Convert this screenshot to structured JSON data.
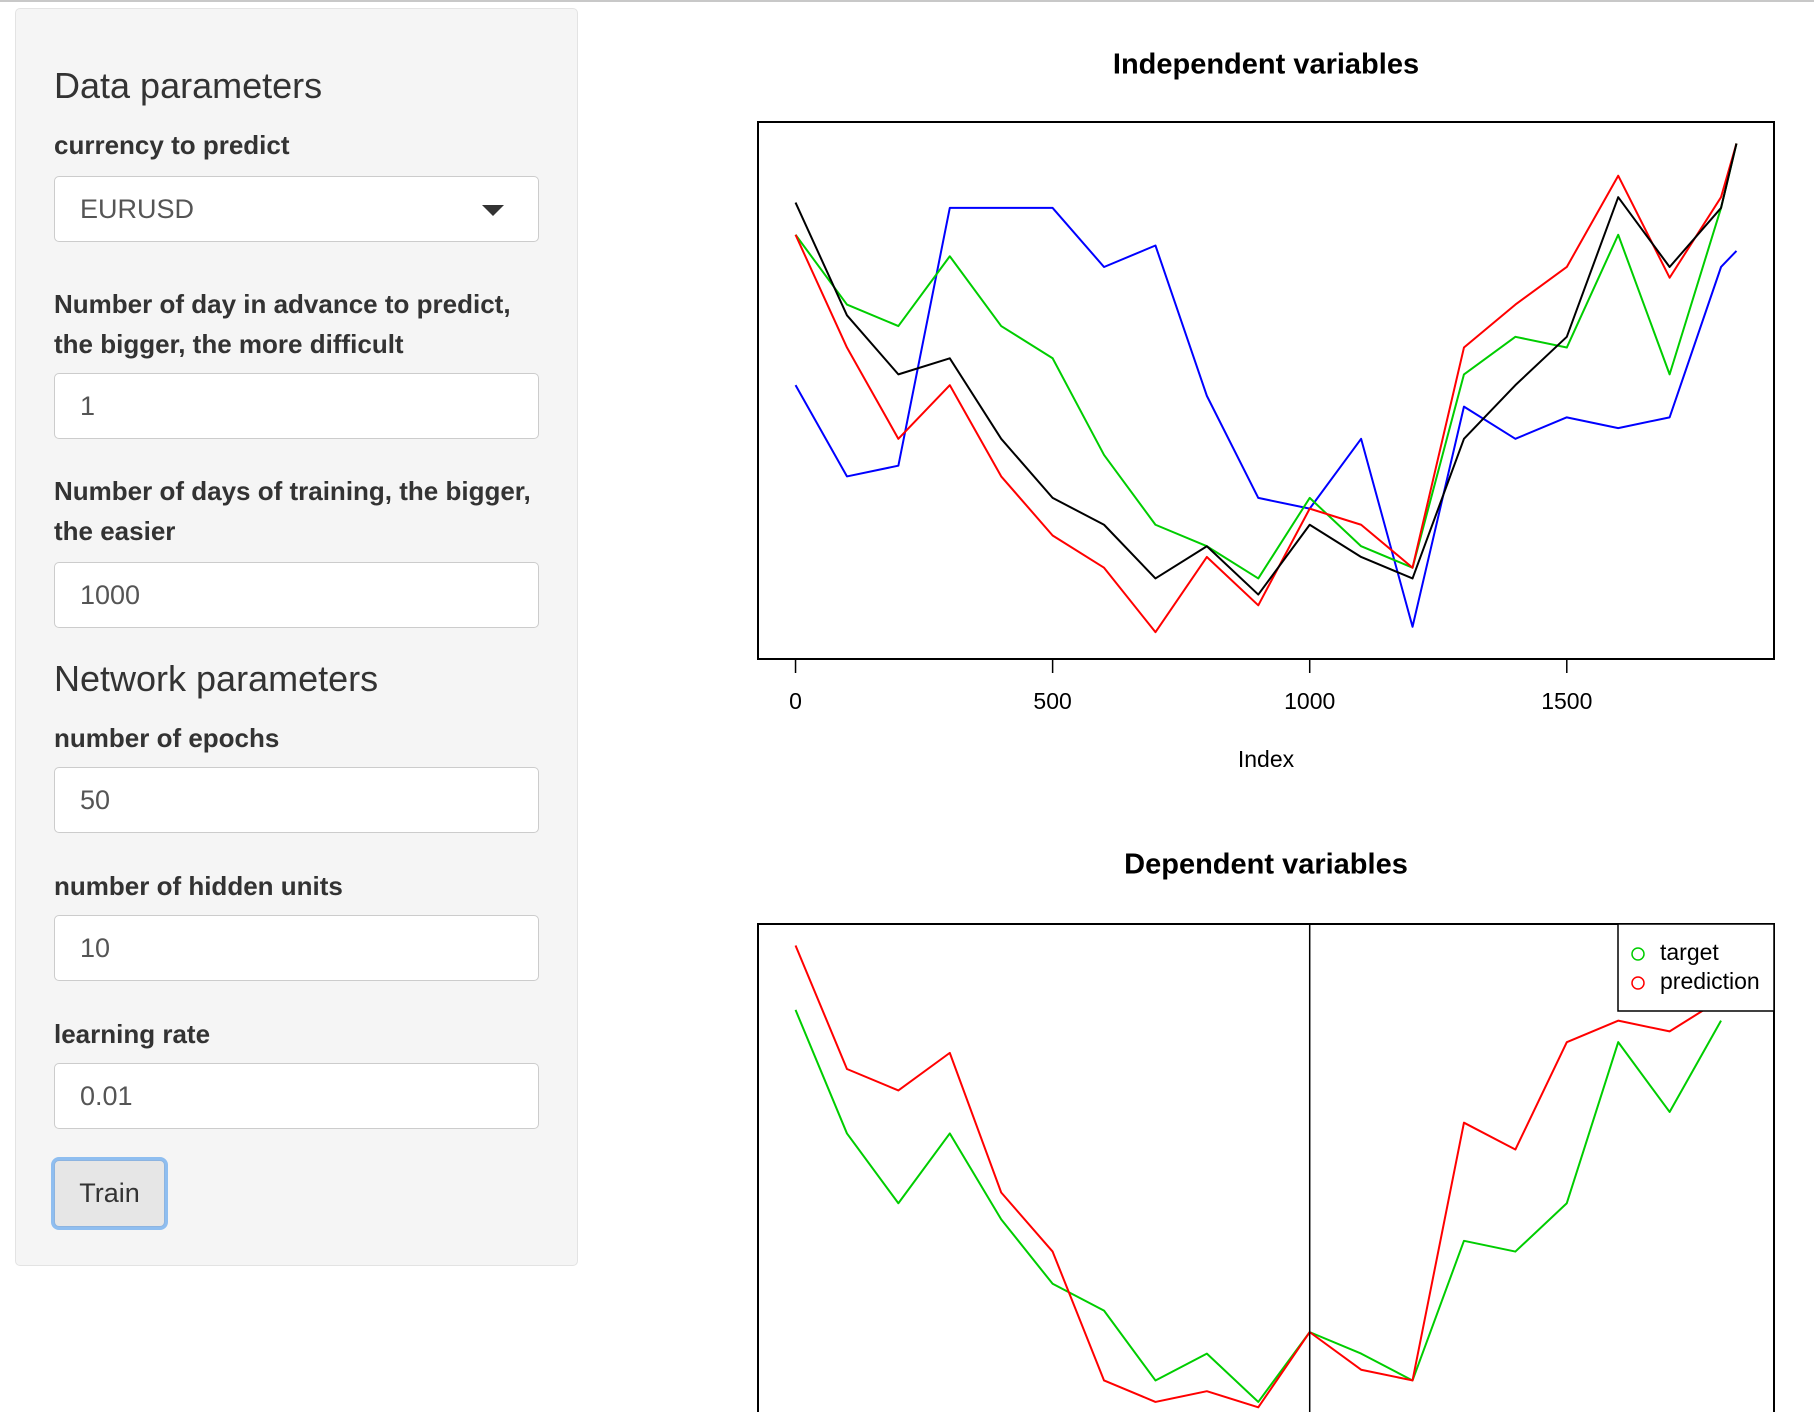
{
  "sidebar": {
    "data_parameters": {
      "title": "Data parameters",
      "fields": [
        {
          "label": "currency to predict",
          "value": "EURUSD"
        },
        {
          "label": "Number of day in advance to predict, the bigger, the more difficult",
          "value": "1"
        },
        {
          "label": "Number of days of training, the bigger, the easier",
          "value": "1000"
        }
      ]
    },
    "network_parameters": {
      "title": "Network parameters",
      "fields": [
        {
          "label": "number of epochs",
          "value": "50"
        },
        {
          "label": "number of hidden units",
          "value": "10"
        },
        {
          "label": "learning rate",
          "value": "0.01"
        }
      ]
    },
    "button": "Train"
  },
  "chart_data": [
    {
      "type": "line",
      "title": "Independent variables",
      "xlabel": "Index",
      "x": [
        0,
        100,
        200,
        300,
        400,
        500,
        600,
        700,
        800,
        900,
        1000,
        1100,
        1200,
        1300,
        1400,
        1500,
        1600,
        1700,
        1800,
        1830
      ],
      "xlim": [
        -73,
        1903
      ],
      "xticks": [
        0,
        500,
        1000,
        1500
      ],
      "ylim": [
        0,
        100
      ],
      "series": [
        {
          "color": "#0000ff",
          "values": [
            51,
            34,
            36,
            84,
            84,
            84,
            73,
            77,
            49,
            30,
            28,
            41,
            6,
            47,
            41,
            45,
            43,
            45,
            73,
            76
          ]
        },
        {
          "color": "#00cd00",
          "values": [
            79,
            66,
            62,
            75,
            62,
            56,
            38,
            25,
            21,
            15,
            30,
            21,
            17,
            53,
            60,
            58,
            79,
            53,
            84,
            96
          ]
        },
        {
          "color": "#ff0000",
          "values": [
            79,
            58,
            41,
            51,
            34,
            23,
            17,
            5,
            19,
            10,
            28,
            25,
            17,
            58,
            66,
            73,
            90,
            71,
            86,
            96
          ]
        },
        {
          "color": "#000000",
          "values": [
            85,
            64,
            53,
            56,
            41,
            30,
            25,
            15,
            21,
            12,
            25,
            19,
            15,
            41,
            51,
            60,
            86,
            73,
            84,
            96
          ]
        }
      ]
    },
    {
      "type": "line",
      "title": "Dependent variables",
      "x": [
        0,
        100,
        200,
        300,
        400,
        500,
        600,
        700,
        800,
        900,
        1000,
        1100,
        1200,
        1300,
        1400,
        1500,
        1600,
        1700,
        1800
      ],
      "xlim": [
        -73,
        1903
      ],
      "ylim": [
        0,
        100
      ],
      "vline": 1000,
      "legend": "top-right",
      "series": [
        {
          "name": "target",
          "color": "#00cd00",
          "values": [
            84,
            61,
            48,
            61,
            45,
            33,
            28,
            15,
            20,
            11,
            24,
            20,
            15,
            41,
            39,
            48,
            78,
            65,
            82
          ]
        },
        {
          "name": "prediction",
          "color": "#ff0000",
          "values": [
            96,
            73,
            69,
            76,
            50,
            39,
            15,
            11,
            13,
            10,
            24,
            17,
            15,
            63,
            58,
            78,
            82,
            80,
            86
          ]
        }
      ]
    }
  ]
}
